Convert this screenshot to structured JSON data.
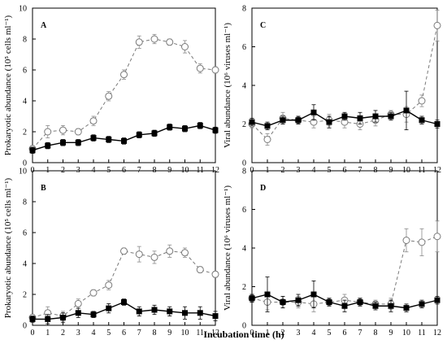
{
  "figure": {
    "x_title": "Incubation time (h)"
  },
  "chart_data": [
    {
      "panel": "A",
      "type": "line",
      "ylabel": "Prokaryotic abundance (10⁵ cells ml⁻¹)",
      "x": [
        0,
        1,
        2,
        3,
        4,
        5,
        6,
        7,
        8,
        9,
        10,
        11,
        12
      ],
      "xlim": [
        0,
        12
      ],
      "ylim": [
        0,
        10
      ],
      "yticks": [
        0,
        2,
        4,
        6,
        8,
        10
      ],
      "series": [
        {
          "marker": "square-filled",
          "line": "solid",
          "color": "#000000",
          "values": [
            0.8,
            1.1,
            1.3,
            1.3,
            1.6,
            1.5,
            1.4,
            1.8,
            1.9,
            2.3,
            2.2,
            2.4,
            2.1
          ],
          "errors": [
            0.2,
            0.2,
            0.2,
            0.2,
            0.2,
            0.2,
            0.2,
            0.2,
            0.2,
            0.2,
            0.2,
            0.2,
            0.2
          ]
        },
        {
          "marker": "circle-open",
          "line": "dashed",
          "color": "#7a7a7a",
          "values": [
            0.9,
            2.0,
            2.1,
            2.0,
            2.7,
            4.3,
            5.7,
            7.8,
            8.0,
            7.8,
            7.5,
            6.1,
            6.0
          ],
          "errors": [
            0.2,
            0.4,
            0.3,
            0.2,
            0.3,
            0.3,
            0.3,
            0.4,
            0.3,
            0.2,
            0.4,
            0.3,
            0.2
          ]
        }
      ]
    },
    {
      "panel": "B",
      "type": "line",
      "ylabel": "Prokaryotic abundance (10⁵ cells ml⁻¹)",
      "x": [
        0,
        1,
        2,
        3,
        4,
        5,
        6,
        7,
        8,
        9,
        10,
        11,
        12
      ],
      "xlim": [
        0,
        12
      ],
      "ylim": [
        0,
        10
      ],
      "yticks": [
        0,
        2,
        4,
        6,
        8,
        10
      ],
      "series": [
        {
          "marker": "square-filled",
          "line": "solid",
          "color": "#000000",
          "values": [
            0.4,
            0.4,
            0.5,
            0.8,
            0.7,
            1.1,
            1.5,
            0.9,
            1.0,
            0.9,
            0.8,
            0.8,
            0.6
          ],
          "errors": [
            0.2,
            0.3,
            0.3,
            0.3,
            0.2,
            0.3,
            0.2,
            0.3,
            0.3,
            0.3,
            0.4,
            0.4,
            0.3
          ]
        },
        {
          "marker": "circle-open",
          "line": "dashed",
          "color": "#7a7a7a",
          "values": [
            0.5,
            0.8,
            0.6,
            1.4,
            2.1,
            2.6,
            4.8,
            4.6,
            4.4,
            4.8,
            4.7,
            3.6,
            3.3
          ],
          "errors": [
            0.2,
            0.4,
            0.3,
            0.3,
            0.2,
            0.3,
            0.2,
            0.5,
            0.4,
            0.4,
            0.3,
            0.2,
            0.2
          ]
        }
      ]
    },
    {
      "panel": "C",
      "type": "line",
      "ylabel": "Viral abundance (10⁶ viruses ml⁻¹)",
      "x": [
        0,
        1,
        2,
        3,
        4,
        5,
        6,
        7,
        8,
        9,
        10,
        11,
        12
      ],
      "xlim": [
        0,
        12
      ],
      "ylim": [
        0,
        8
      ],
      "yticks": [
        0,
        2,
        4,
        6,
        8
      ],
      "series": [
        {
          "marker": "square-filled",
          "line": "solid",
          "color": "#000000",
          "values": [
            2.1,
            1.9,
            2.2,
            2.2,
            2.6,
            2.1,
            2.4,
            2.3,
            2.4,
            2.4,
            2.7,
            2.2,
            2.0
          ],
          "errors": [
            0.2,
            0.2,
            0.2,
            0.2,
            0.4,
            0.3,
            0.2,
            0.3,
            0.3,
            0.2,
            1.0,
            0.2,
            0.2
          ]
        },
        {
          "marker": "circle-open",
          "line": "dashed",
          "color": "#7a7a7a",
          "values": [
            2.0,
            1.2,
            2.3,
            2.2,
            2.1,
            2.2,
            2.1,
            2.0,
            2.2,
            2.5,
            2.5,
            3.2,
            7.1
          ],
          "errors": [
            0.2,
            0.3,
            0.3,
            0.2,
            0.3,
            0.3,
            0.3,
            0.3,
            0.3,
            0.2,
            0.4,
            0.3,
            0.8
          ]
        }
      ]
    },
    {
      "panel": "D",
      "type": "line",
      "ylabel": "Viral abundance (10⁶ viruses ml⁻¹)",
      "x": [
        0,
        1,
        2,
        3,
        4,
        5,
        6,
        7,
        8,
        9,
        10,
        11,
        12
      ],
      "xlim": [
        0,
        12
      ],
      "ylim": [
        0,
        8
      ],
      "yticks": [
        0,
        2,
        4,
        6,
        8
      ],
      "series": [
        {
          "marker": "square-filled",
          "line": "solid",
          "color": "#000000",
          "values": [
            1.4,
            1.6,
            1.2,
            1.3,
            1.6,
            1.2,
            1.0,
            1.2,
            1.0,
            1.0,
            0.9,
            1.1,
            1.3
          ],
          "errors": [
            0.2,
            0.9,
            0.3,
            0.3,
            0.7,
            0.2,
            0.3,
            0.2,
            0.2,
            0.3,
            0.2,
            0.2,
            0.2
          ]
        },
        {
          "marker": "circle-open",
          "line": "dashed",
          "color": "#7a7a7a",
          "values": [
            1.4,
            1.2,
            1.2,
            1.2,
            1.1,
            1.2,
            1.3,
            1.2,
            1.1,
            1.1,
            4.4,
            4.3,
            4.6
          ],
          "errors": [
            0.2,
            0.4,
            0.3,
            0.3,
            0.4,
            0.2,
            0.3,
            0.2,
            0.2,
            0.3,
            0.6,
            0.7,
            0.8
          ]
        }
      ]
    }
  ]
}
